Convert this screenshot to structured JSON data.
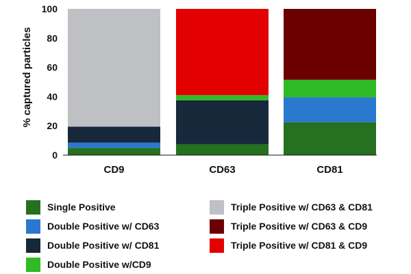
{
  "chart_data": {
    "type": "bar",
    "stacked": true,
    "title": "",
    "xlabel": "",
    "ylabel": "% captured particles",
    "ylim": [
      0,
      100
    ],
    "yticks": [
      0,
      20,
      40,
      60,
      80,
      100
    ],
    "categories": [
      "CD9",
      "CD63",
      "CD81"
    ],
    "series": [
      {
        "name": "Single Positive",
        "color": "#267021",
        "values": [
          5,
          7.5,
          22.5
        ]
      },
      {
        "name": "Double Positive w/ CD63",
        "color": "#2a79cf",
        "values": [
          3.5,
          0,
          17
        ]
      },
      {
        "name": "Double Positive w/ CD81",
        "color": "#17283b",
        "values": [
          11,
          30,
          0
        ]
      },
      {
        "name": "Double Positive w/CD9",
        "color": "#2fbb25",
        "values": [
          0,
          3.5,
          12
        ]
      },
      {
        "name": "Triple Positive w/ CD63 & CD81",
        "color": "#bfc0c4",
        "values": [
          80.5,
          0,
          0
        ]
      },
      {
        "name": "Triple Positive w/ CD63 & CD9",
        "color": "#6b0000",
        "values": [
          0,
          0,
          48.5
        ]
      },
      {
        "name": "Triple Positive w/ CD81 & CD9",
        "color": "#e20000",
        "values": [
          0,
          59,
          0
        ]
      }
    ],
    "legend": {
      "placement": "bottom",
      "left_column": [
        "Single Positive",
        "Double Positive w/ CD63",
        "Double Positive w/ CD81",
        "Double Positive w/CD9"
      ],
      "right_column": [
        "Triple Positive w/ CD63 & CD81",
        "Triple Positive w/ CD63 & CD9",
        "Triple Positive w/ CD81 & CD9"
      ]
    },
    "grid": false
  }
}
